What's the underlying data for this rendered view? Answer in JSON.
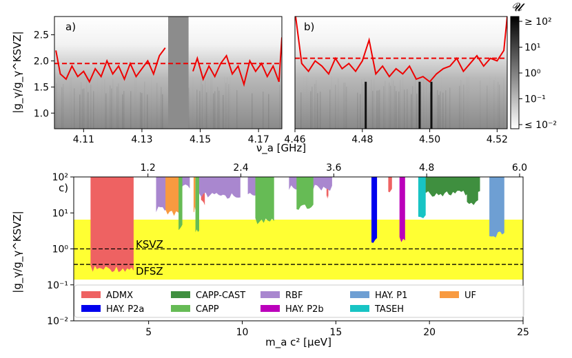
{
  "chart_data": [
    {
      "panel": "a)",
      "type": "heatmap",
      "xlabel": "ν_a [GHz]",
      "ylabel": "|g_γ/g_γ^KSVZ|",
      "xlim": [
        4.1,
        4.178
      ],
      "ylim": [
        0.7,
        2.85
      ],
      "xticks": [
        "4.11",
        "4.13",
        "4.15",
        "4.17"
      ],
      "xtick_values": [
        4.11,
        4.13,
        4.15,
        4.17
      ],
      "yticks": [
        "1.0",
        "1.5",
        "2.0",
        "2.5"
      ],
      "ytick_values": [
        1.0,
        1.5,
        2.0,
        2.5
      ],
      "excluded_band": [
        4.139,
        4.146
      ],
      "threshold": 1.95,
      "limit_segments": [
        {
          "x": [
            4.1005,
            4.102,
            4.104,
            4.106,
            4.108,
            4.11,
            4.112,
            4.114,
            4.116,
            4.118,
            4.12,
            4.122,
            4.124,
            4.126,
            4.128,
            4.13,
            4.132,
            4.134,
            4.136,
            4.138
          ],
          "y": [
            2.2,
            1.75,
            1.65,
            1.9,
            1.7,
            1.8,
            1.6,
            1.85,
            1.7,
            2.0,
            1.75,
            1.9,
            1.65,
            1.95,
            1.7,
            1.85,
            2.0,
            1.75,
            2.1,
            2.25
          ]
        },
        {
          "x": [
            4.1475,
            4.149,
            4.151,
            4.153,
            4.155,
            4.157,
            4.159,
            4.161,
            4.163,
            4.165,
            4.167,
            4.169,
            4.171,
            4.173,
            4.175,
            4.177,
            4.178
          ],
          "y": [
            1.8,
            2.05,
            1.65,
            1.9,
            1.7,
            1.95,
            2.1,
            1.75,
            1.9,
            1.55,
            2.0,
            1.8,
            1.95,
            1.7,
            1.9,
            1.6,
            2.45
          ]
        }
      ]
    },
    {
      "panel": "b)",
      "type": "heatmap",
      "xlim": [
        4.46,
        4.523
      ],
      "ylim": [
        0.7,
        2.85
      ],
      "xticks": [
        "4.46",
        "4.48",
        "4.50",
        "4.52"
      ],
      "xtick_values": [
        4.46,
        4.48,
        4.5,
        4.52
      ],
      "threshold": 2.05,
      "dark_lines": [
        4.481,
        4.497,
        4.5005
      ],
      "limit_segments": [
        {
          "x": [
            4.4602,
            4.462,
            4.464,
            4.466,
            4.468,
            4.47,
            4.472,
            4.474,
            4.476,
            4.478,
            4.48,
            4.482,
            4.484,
            4.486,
            4.488,
            4.49,
            4.492,
            4.494,
            4.496,
            4.498,
            4.5,
            4.502,
            4.504,
            4.506,
            4.508,
            4.51,
            4.512,
            4.514,
            4.516,
            4.518,
            4.52,
            4.522,
            4.523
          ],
          "y": [
            2.85,
            1.95,
            1.8,
            2.0,
            1.9,
            1.75,
            2.05,
            1.85,
            1.95,
            1.8,
            2.0,
            2.4,
            1.75,
            1.9,
            1.7,
            1.85,
            1.75,
            1.9,
            1.65,
            1.7,
            1.6,
            1.75,
            1.85,
            1.9,
            2.05,
            1.8,
            1.95,
            2.1,
            1.9,
            2.05,
            2.0,
            2.2,
            2.85
          ]
        }
      ],
      "colorbar": {
        "label": "𝓤",
        "ticks": [
          "≥ 10²",
          "10¹",
          "10⁰",
          "10⁻¹",
          "≤ 10⁻²"
        ]
      }
    },
    {
      "panel": "c)",
      "type": "area",
      "xlabel": "m_a c² [μeV]",
      "ylabel": "|g_γ/g_γ^KSVZ|",
      "top_xlabel_ticks": [
        "1.2",
        "2.4",
        "3.6",
        "4.8",
        "6.0"
      ],
      "top_xtick_values_ueV": [
        4.963,
        9.926,
        14.889,
        19.852,
        24.815
      ],
      "xlim": [
        1.0,
        25.0
      ],
      "ylim_log": [
        0.01,
        100
      ],
      "xticks": [
        "5",
        "10",
        "15",
        "20",
        "25"
      ],
      "xtick_values": [
        5,
        10,
        15,
        20,
        25
      ],
      "yticks": [
        "10⁻²",
        "10⁻¹",
        "10⁰",
        "10¹",
        "10²"
      ],
      "ytick_values": [
        0.01,
        0.1,
        1,
        10,
        100
      ],
      "band": {
        "ymin": 0.14,
        "ymax": 6.5,
        "color": "#ffff33"
      },
      "ref_lines": [
        {
          "name": "KSVZ",
          "y": 1.0
        },
        {
          "name": "DFSZ",
          "y": 0.37
        }
      ],
      "series": [
        {
          "name": "ADMX",
          "color": "#ee6262",
          "regions": [
            [
              1.9,
              4.2,
              0.28
            ],
            [
              7.8,
              8.0,
              20
            ],
            [
              14.5,
              14.6,
              30
            ],
            [
              17.8,
              18.0,
              40
            ]
          ]
        },
        {
          "name": "CAPP-CAST",
          "color": "#3f8f3f",
          "regions": [
            [
              19.6,
              22.7,
              35
            ],
            [
              22.0,
              22.6,
              20
            ]
          ]
        },
        {
          "name": "RBF",
          "color": "#a987cf",
          "regions": [
            [
              5.4,
              6.1,
              12
            ],
            [
              6.5,
              7.2,
              50
            ],
            [
              7.7,
              9.9,
              30
            ],
            [
              10.3,
              11.0,
              30
            ],
            [
              12.5,
              14.8,
              50
            ]
          ]
        },
        {
          "name": "HAY. P1",
          "color": "#6e9fd3",
          "regions": [
            [
              23.2,
              24.0,
              2.5
            ]
          ]
        },
        {
          "name": "UF",
          "color": "#f89a40",
          "regions": [
            [
              5.9,
              6.7,
              10
            ],
            [
              7.4,
              7.5,
              12
            ]
          ]
        },
        {
          "name": "HAY. P2a",
          "color": "#0000ee",
          "regions": [
            [
              16.9,
              17.2,
              1.8
            ]
          ]
        },
        {
          "name": "CAPP",
          "color": "#66bb55",
          "regions": [
            [
              6.6,
              6.8,
              4
            ],
            [
              10.7,
              11.7,
              6
            ],
            [
              7.5,
              7.7,
              3
            ],
            [
              12.9,
              13.8,
              15
            ]
          ]
        },
        {
          "name": "HAY. P2b",
          "color": "#bb00bb",
          "regions": [
            [
              18.4,
              18.7,
              1.8
            ]
          ]
        },
        {
          "name": "TASEH",
          "color": "#18c4c4",
          "regions": [
            [
              19.4,
              19.8,
              8
            ]
          ]
        }
      ],
      "labels": [
        "KSVZ",
        "DFSZ"
      ]
    }
  ]
}
